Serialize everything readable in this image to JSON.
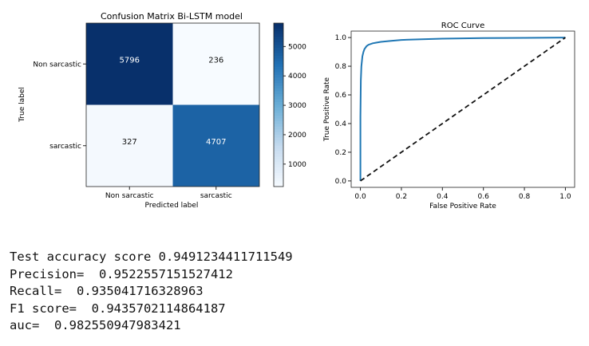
{
  "chart_data": [
    {
      "type": "heatmap",
      "title": "Confusion Matrix Bi-LSTM model",
      "xlabel": "Predicted label",
      "ylabel": "True label",
      "x_categories": [
        "Non sarcastic",
        "sarcastic"
      ],
      "y_categories": [
        "Non sarcastic",
        "sarcastic"
      ],
      "values": [
        [
          5796,
          236
        ],
        [
          327,
          4707
        ]
      ],
      "colormap": "Blues",
      "colorbar": {
        "range": [
          236,
          5796
        ],
        "ticks": [
          1000,
          2000,
          3000,
          4000,
          5000
        ]
      },
      "colors": {
        "low": "#f7fbff",
        "high": "#08306b"
      }
    },
    {
      "type": "line",
      "title": "ROC Curve",
      "xlabel": "False Positive Rate",
      "ylabel": "True Positive Rate",
      "xlim": [
        0,
        1
      ],
      "ylim": [
        0,
        1
      ],
      "xticks": [
        "0.0",
        "0.2",
        "0.4",
        "0.6",
        "0.8",
        "1.0"
      ],
      "yticks": [
        "0.0",
        "0.2",
        "0.4",
        "0.6",
        "0.8",
        "1.0"
      ],
      "grid": false,
      "series": [
        {
          "color": "#1f77b4",
          "style": "solid",
          "x": [
            0.0,
            0.0,
            0.002,
            0.005,
            0.01,
            0.015,
            0.02,
            0.03,
            0.04,
            0.06,
            0.08,
            0.1,
            0.15,
            0.2,
            0.3,
            0.4,
            0.6,
            0.8,
            1.0
          ],
          "y": [
            0.0,
            0.45,
            0.7,
            0.8,
            0.87,
            0.9,
            0.92,
            0.94,
            0.95,
            0.96,
            0.965,
            0.97,
            0.977,
            0.983,
            0.988,
            0.992,
            0.996,
            0.998,
            1.0
          ]
        },
        {
          "color": "#111111",
          "style": "dashed",
          "x": [
            0,
            1
          ],
          "y": [
            0,
            1
          ]
        }
      ]
    }
  ],
  "metrics": [
    "Test accuracy score 0.9491234411711549",
    "Precision=  0.9522557151527412",
    "Recall=  0.935041716328963",
    "F1 score=  0.9435702114864187",
    "auc=  0.982550947983421"
  ]
}
